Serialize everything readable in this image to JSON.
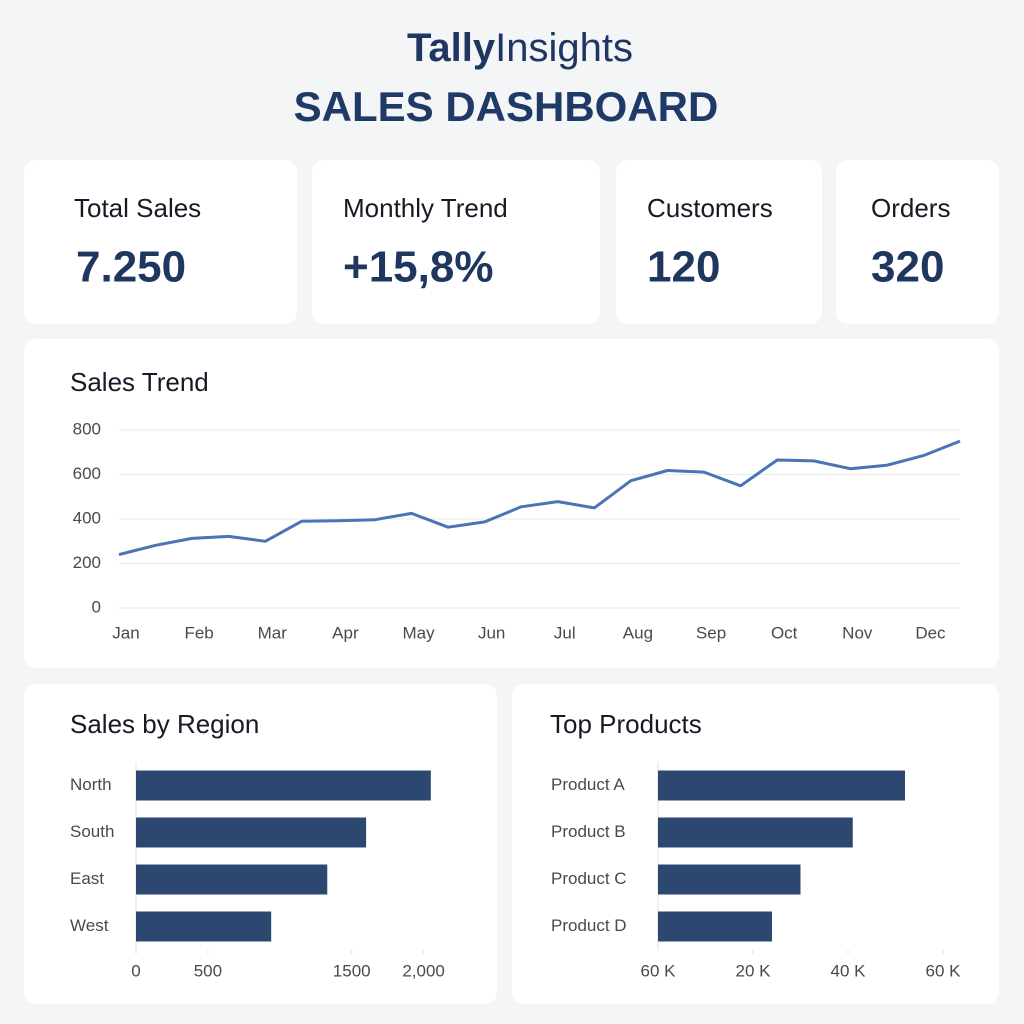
{
  "header": {
    "brand_bold": "Tally",
    "brand_light": "Insights",
    "title": "SALES DASHBOARD"
  },
  "kpis": [
    {
      "label": "Total Sales",
      "value": "7.250"
    },
    {
      "label": "Monthly Trend",
      "value": "+15,8%"
    },
    {
      "label": "Customers",
      "value": "120"
    },
    {
      "label": "Orders",
      "value": "320"
    }
  ],
  "chart_data": [
    {
      "type": "line",
      "title": "Sales Trend",
      "color": "#4a74b4",
      "grid": true,
      "categories": [
        "Jan",
        null,
        "Feb",
        null,
        "Mar",
        null,
        "Apr",
        null,
        "May",
        null,
        "Jun",
        null,
        "Jul",
        null,
        "Aug",
        null,
        "Sep",
        null,
        "Oct",
        null,
        "Nov",
        null,
        "Dec",
        null
      ],
      "values": [
        240,
        282,
        313,
        322,
        300,
        390,
        392,
        397,
        425,
        363,
        387,
        455,
        478,
        450,
        572,
        618,
        611,
        549,
        665,
        661,
        626,
        642,
        685,
        750
      ],
      "ylim": [
        0,
        800
      ],
      "yticks": [
        0,
        200,
        400,
        600,
        800
      ]
    },
    {
      "type": "bar",
      "orientation": "horizontal",
      "title": "Sales by Region",
      "color": "#2c4770",
      "categories": [
        "North",
        "South",
        "East",
        "West"
      ],
      "values": [
        2050,
        1600,
        1330,
        940
      ],
      "xlim": [
        0,
        2100
      ],
      "xticks": [
        0,
        500,
        1500,
        {
          "value": 2000,
          "label": "2,000"
        }
      ]
    },
    {
      "type": "bar",
      "orientation": "horizontal",
      "title": "Top Products",
      "color": "#2c4770",
      "categories": [
        "Product A",
        "Product B",
        "Product C",
        "Product D"
      ],
      "values": [
        52000,
        41000,
        30000,
        24000
      ],
      "xlim": [
        0,
        60000
      ],
      "origin_label": "60 K",
      "xticks": [
        {
          "value": 20000,
          "label": "20 K"
        },
        {
          "value": 40000,
          "label": "40 K"
        },
        {
          "value": 60000,
          "label": "60 K"
        }
      ]
    }
  ]
}
